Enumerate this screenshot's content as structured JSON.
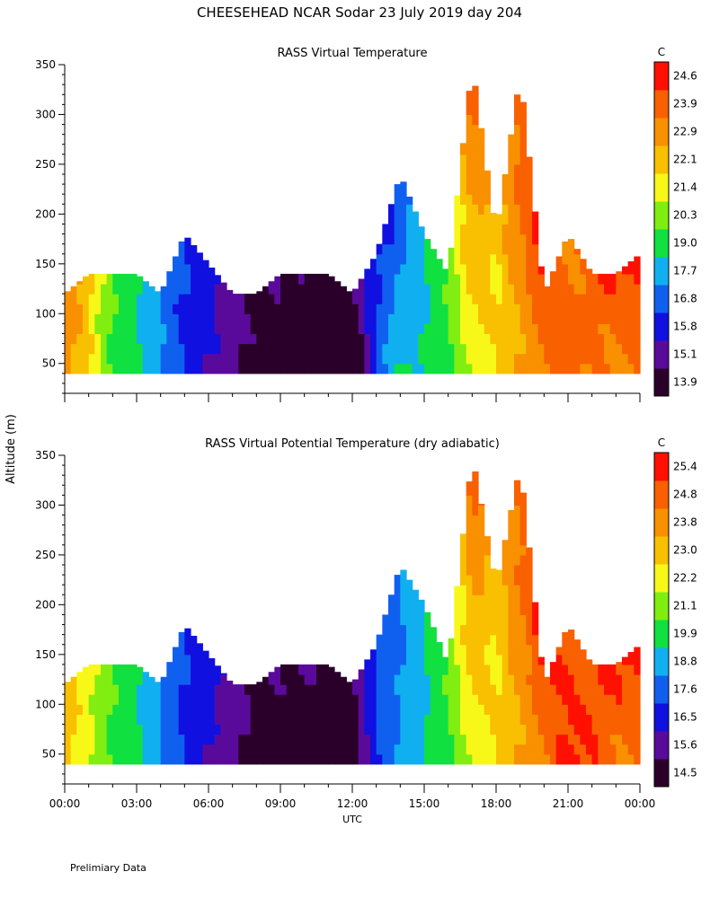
{
  "page": {
    "title": "CHEESEHEAD   NCAR Sodar   23 July 2019   day 204",
    "footer": "Prelimiary Data",
    "shared_ylabel": "Altitude (m)"
  },
  "palette": [
    "#2a002a",
    "#5a0a9a",
    "#1010e0",
    "#1060f0",
    "#10b0f0",
    "#10e040",
    "#80ee10",
    "#f8f818",
    "#f8c000",
    "#f89000",
    "#f86000",
    "#ff1000"
  ],
  "chart_data": [
    {
      "type": "heatmap",
      "title": "RASS Virtual Temperature",
      "xlabel": "",
      "ylabel": "Altitude (m)",
      "x_ticks": [
        "00:00",
        "03:00",
        "06:00",
        "09:00",
        "12:00",
        "15:00",
        "18:00",
        "21:00",
        "00:00"
      ],
      "y_ticks": [
        50,
        100,
        150,
        200,
        250,
        300,
        350
      ],
      "ylim": [
        20,
        350
      ],
      "xlim_hours": [
        0,
        24
      ],
      "colorbar_unit": "C",
      "colorbar_levels": [
        13.9,
        15.1,
        15.8,
        16.8,
        17.7,
        19.0,
        20.3,
        21.4,
        22.1,
        22.9,
        23.9,
        24.6
      ],
      "x_hours": [
        0,
        1,
        2,
        3,
        4,
        5,
        6,
        7,
        8,
        9,
        10,
        11,
        12,
        13,
        14,
        15,
        16,
        17,
        18,
        19,
        20,
        21,
        22,
        23,
        24
      ],
      "top_altitude": [
        120,
        140,
        140,
        140,
        120,
        180,
        150,
        120,
        120,
        140,
        140,
        140,
        120,
        160,
        240,
        180,
        140,
        350,
        180,
        340,
        120,
        180,
        140,
        140,
        160
      ],
      "temp_at_50m": [
        22.9,
        22.1,
        20.3,
        19.0,
        17.7,
        16.8,
        15.8,
        15.1,
        14.9,
        14.5,
        14.2,
        13.9,
        14.2,
        16.8,
        19.0,
        19.0,
        20.3,
        21.4,
        22.1,
        22.9,
        23.9,
        23.9,
        23.9,
        23.9,
        23.9
      ],
      "temp_at_top": [
        23.9,
        22.9,
        20.3,
        19.0,
        17.7,
        16.8,
        16.0,
        15.3,
        15.1,
        15.1,
        15.0,
        14.8,
        15.1,
        16.5,
        16.8,
        19.0,
        20.3,
        24.6,
        22.1,
        24.6,
        24.6,
        23.9,
        24.6,
        24.6,
        24.6
      ]
    },
    {
      "type": "heatmap",
      "title": "RASS Virtual Potential Temperature (dry adiabatic)",
      "xlabel": "UTC",
      "ylabel": "Altitude (m)",
      "x_ticks": [
        "00:00",
        "03:00",
        "06:00",
        "09:00",
        "12:00",
        "15:00",
        "18:00",
        "21:00",
        "00:00"
      ],
      "y_ticks": [
        50,
        100,
        150,
        200,
        250,
        300,
        350
      ],
      "ylim": [
        20,
        350
      ],
      "xlim_hours": [
        0,
        24
      ],
      "colorbar_unit": "C",
      "colorbar_levels": [
        14.5,
        15.6,
        16.5,
        17.6,
        18.8,
        19.9,
        21.1,
        22.2,
        23.0,
        23.8,
        24.8,
        25.4
      ],
      "x_hours": [
        0,
        1,
        2,
        3,
        4,
        5,
        6,
        7,
        8,
        9,
        10,
        11,
        12,
        13,
        14,
        15,
        16,
        17,
        18,
        19,
        20,
        21,
        22,
        23,
        24
      ],
      "top_altitude": [
        120,
        140,
        140,
        140,
        120,
        180,
        150,
        120,
        120,
        140,
        140,
        140,
        120,
        160,
        240,
        200,
        140,
        350,
        220,
        340,
        120,
        180,
        140,
        140,
        160
      ],
      "temp_at_50m": [
        23.0,
        22.2,
        21.1,
        19.9,
        18.8,
        17.6,
        16.5,
        15.6,
        15.3,
        15.0,
        14.8,
        14.5,
        15.0,
        17.6,
        18.8,
        19.9,
        21.1,
        22.2,
        23.0,
        23.8,
        24.8,
        25.4,
        25.4,
        25.0,
        24.8
      ],
      "temp_at_top": [
        23.8,
        23.0,
        21.1,
        19.9,
        18.8,
        17.6,
        16.8,
        16.0,
        15.6,
        15.6,
        15.6,
        15.6,
        15.6,
        17.6,
        18.8,
        19.9,
        21.1,
        25.4,
        23.0,
        25.4,
        25.4,
        25.4,
        25.4,
        25.4,
        25.4
      ]
    }
  ]
}
